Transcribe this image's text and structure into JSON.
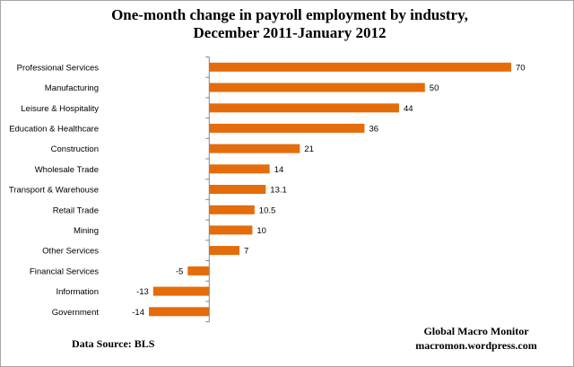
{
  "chart_data": {
    "type": "bar",
    "orientation": "horizontal",
    "title_lines": [
      "One-month change in payroll employment by industry,",
      "December 2011-January 2012"
    ],
    "categories": [
      "Professional Services",
      "Manufacturing",
      "Leisure & Hospitality",
      "Education & Healthcare",
      "Construction",
      "Wholesale Trade",
      "Transport & Warehouse",
      "Retail Trade",
      "Mining",
      "Other Services",
      "Financial Services",
      "Information",
      "Government"
    ],
    "values": [
      70,
      50,
      44,
      36,
      21,
      14,
      13.1,
      10.5,
      10,
      7,
      -5,
      -13,
      -14
    ],
    "value_labels": [
      "70",
      "50",
      "44",
      "36",
      "21",
      "14",
      "13.1",
      "10.5",
      "10",
      "7",
      "-5",
      "-13",
      "-14"
    ],
    "xlim": [
      -14,
      70
    ],
    "bar_color": "#e46c0a",
    "axis_color": "#868686",
    "xlabel": "",
    "ylabel": "",
    "grid": false,
    "legend": "none"
  },
  "footer": {
    "source": "Data Source:  BLS",
    "brand_line1": "Global Macro Monitor",
    "brand_line2": "macromon.wordpress.com"
  }
}
